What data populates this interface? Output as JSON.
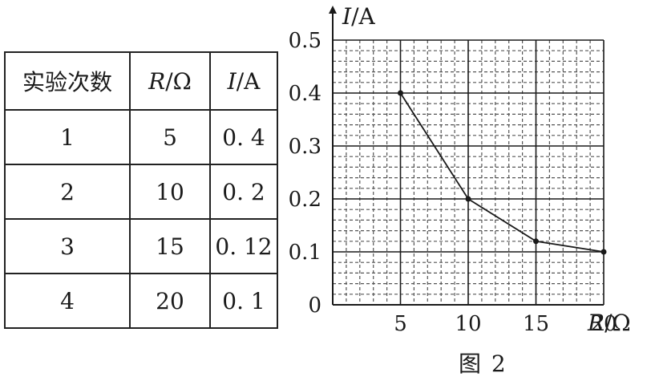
{
  "table": {
    "headers": [
      {
        "label": "实验次数"
      },
      {
        "var": "R",
        "unit": "/Ω"
      },
      {
        "var": "I",
        "unit": "/A"
      }
    ],
    "rows": [
      [
        "1",
        "5",
        "0. 4"
      ],
      [
        "2",
        "10",
        "0. 2"
      ],
      [
        "3",
        "15",
        "0. 12"
      ],
      [
        "4",
        "20",
        "0. 1"
      ]
    ]
  },
  "chart_data": {
    "type": "line",
    "x": [
      5,
      10,
      15,
      20
    ],
    "y": [
      0.4,
      0.2,
      0.12,
      0.1
    ],
    "xlim": [
      0,
      20
    ],
    "ylim": [
      0,
      0.5
    ],
    "x_ticks": [
      "5",
      "10",
      "15",
      "20"
    ],
    "y_ticks": [
      "0",
      "0.1",
      "0.2",
      "0.3",
      "0.4",
      "0.5"
    ],
    "xlabel": {
      "var": "R",
      "unit": "/Ω"
    },
    "ylabel": {
      "var": "I",
      "unit": "/A"
    },
    "grid": true,
    "line_color": "#1a1a1a"
  },
  "caption": "图 2"
}
